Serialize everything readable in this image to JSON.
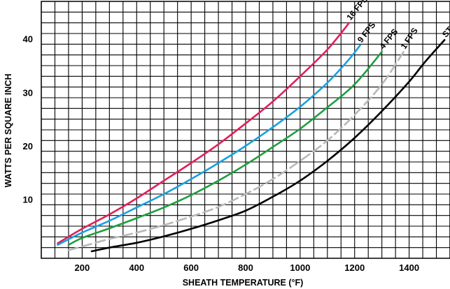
{
  "chart_data": {
    "type": "line",
    "title": "",
    "xlabel": "SHEATH TEMPERATURE (°F)",
    "ylabel": "WATTS PER SQUARE INCH",
    "xlim": [
      50,
      1550
    ],
    "ylim": [
      -1,
      47
    ],
    "xticks": [
      {
        "value": 200,
        "label": "200"
      },
      {
        "value": 400,
        "label": "400"
      },
      {
        "value": 600,
        "label": "600"
      },
      {
        "value": 800,
        "label": "800"
      },
      {
        "value": 1000,
        "label": "1000"
      },
      {
        "value": 1200,
        "label": "1200"
      },
      {
        "value": 1400,
        "label": "1400"
      }
    ],
    "yticks": [
      {
        "value": 10,
        "label": "10"
      },
      {
        "value": 20,
        "label": "20"
      },
      {
        "value": 30,
        "label": "30"
      },
      {
        "value": 40,
        "label": "40"
      }
    ],
    "grid": true,
    "legend": "none",
    "series": [
      {
        "name": "16 FPS",
        "color": "#e0205a",
        "dashed": false,
        "points": [
          [
            110,
            1.8
          ],
          [
            200,
            4.5
          ],
          [
            300,
            7.2
          ],
          [
            400,
            10.2
          ],
          [
            500,
            13.5
          ],
          [
            600,
            16.8
          ],
          [
            700,
            20.3
          ],
          [
            800,
            24.2
          ],
          [
            900,
            28.3
          ],
          [
            1000,
            33
          ],
          [
            1100,
            38
          ],
          [
            1180,
            43
          ]
        ]
      },
      {
        "name": "9 FPS",
        "color": "#1a9fe0",
        "dashed": false,
        "points": [
          [
            110,
            1.5
          ],
          [
            200,
            3.8
          ],
          [
            300,
            6
          ],
          [
            400,
            8.5
          ],
          [
            500,
            11
          ],
          [
            600,
            13.8
          ],
          [
            700,
            16.8
          ],
          [
            800,
            20
          ],
          [
            900,
            23.5
          ],
          [
            1000,
            27.3
          ],
          [
            1100,
            31.8
          ],
          [
            1180,
            36.2
          ],
          [
            1220,
            38.8
          ]
        ]
      },
      {
        "name": "4 FPS",
        "color": "#1e9e3e",
        "dashed": false,
        "points": [
          [
            150,
            1.5
          ],
          [
            200,
            2.8
          ],
          [
            300,
            4.6
          ],
          [
            400,
            6.5
          ],
          [
            500,
            8.5
          ],
          [
            600,
            10.8
          ],
          [
            700,
            13.5
          ],
          [
            800,
            16.5
          ],
          [
            900,
            19.8
          ],
          [
            1000,
            23.2
          ],
          [
            1100,
            27.2
          ],
          [
            1200,
            31.5
          ],
          [
            1300,
            37.6
          ]
        ]
      },
      {
        "name": "1 FPS",
        "color": "#b8b8b8",
        "dashed": true,
        "points": [
          [
            150,
            0.5
          ],
          [
            200,
            1.2
          ],
          [
            300,
            2.6
          ],
          [
            400,
            3.8
          ],
          [
            500,
            5.2
          ],
          [
            600,
            6.8
          ],
          [
            700,
            8.6
          ],
          [
            800,
            11
          ],
          [
            900,
            13.8
          ],
          [
            1000,
            17.2
          ],
          [
            1100,
            21
          ],
          [
            1200,
            25.8
          ],
          [
            1300,
            31.5
          ],
          [
            1380,
            37.6
          ]
        ]
      },
      {
        "name": "STILL AIR",
        "color": "#000000",
        "dashed": false,
        "points": [
          [
            235,
            0.3
          ],
          [
            300,
            1
          ],
          [
            400,
            1.9
          ],
          [
            500,
            3.1
          ],
          [
            600,
            4.5
          ],
          [
            700,
            6.1
          ],
          [
            800,
            7.9
          ],
          [
            900,
            10.5
          ],
          [
            1000,
            13.5
          ],
          [
            1100,
            17.2
          ],
          [
            1200,
            21.5
          ],
          [
            1300,
            26.5
          ],
          [
            1400,
            32
          ],
          [
            1460,
            35.8
          ],
          [
            1530,
            39.8
          ]
        ]
      }
    ]
  }
}
